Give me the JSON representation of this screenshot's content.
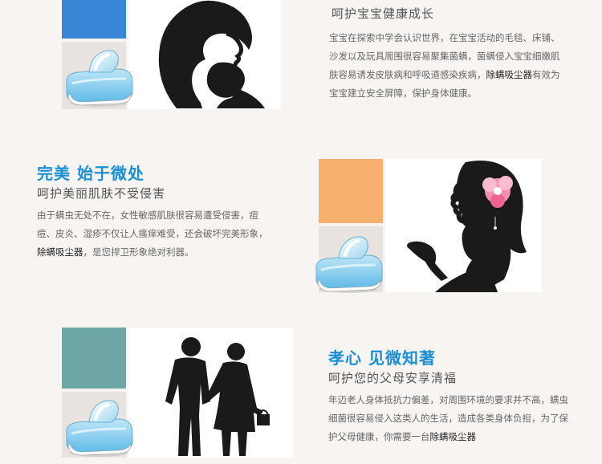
{
  "colors": {
    "background": "#f7f4f2",
    "accent_blue": "#1b8fd2",
    "swatch_blue": "#3a86d6",
    "swatch_orange": "#f6b070",
    "swatch_teal": "#6fa7a8",
    "silhouette": "#1a1a1a",
    "flower_pink": "#f48fb1"
  },
  "section1": {
    "subtitle": "呵护宝宝健康成长",
    "body_pre": "宝宝在探索中学会认识世界，在宝宝活动的毛毯、床铺、沙发以及玩具周围很容易聚集菌螨，菌螨侵入宝宝细嫩肌肤容易诱发皮肤病和呼吸道感染疾病，",
    "body_highlight": "除螨吸尘器",
    "body_post": "有效为宝宝建立安全屏障，保护身体健康。",
    "image_icon": "mother-baby-silhouette-icon",
    "device_icon": "mite-vacuum-device-icon"
  },
  "section2": {
    "title": "完美 始于微处",
    "subtitle": "呵护美丽肌肤不受侵害",
    "body_pre": "由于螨虫无处不在，女性敏感肌肤很容易遭受侵害，痘痘、皮炎、湿疹不仅让人瘙痒难受，还会破坏完美形象，",
    "body_highlight": "除螨吸尘器",
    "body_post": "，是您捍卫形象绝对利器。",
    "image_icon": "woman-flower-silhouette-icon",
    "device_icon": "mite-vacuum-device-icon"
  },
  "section3": {
    "title": "孝心 见微知著",
    "subtitle": "呵护您的父母安享清福",
    "body_pre": "年迈老人身体抵抗力偏差，对周围环境的要求并不高，螨虫细菌很容易侵入这类人的生活，造成各类身体负担，为了保护父母健康，你需要一台",
    "body_highlight": "除螨吸尘器",
    "body_post": "",
    "image_icon": "elderly-couple-silhouette-icon",
    "device_icon": "mite-vacuum-device-icon"
  }
}
